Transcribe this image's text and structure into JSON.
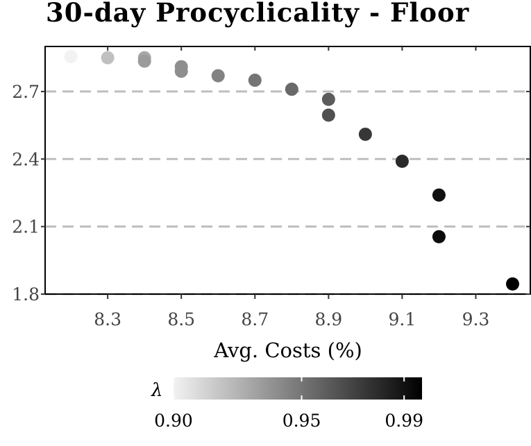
{
  "chart_data": {
    "type": "scatter",
    "title": "30-day Procyclicality - Floor",
    "xlabel": "Avg. Costs (%)",
    "ylabel": "",
    "xlim": [
      8.13,
      9.45
    ],
    "ylim": [
      1.8,
      2.9
    ],
    "x_ticks": [
      "8.3",
      "8.5",
      "8.7",
      "8.9",
      "9.1",
      "9.3"
    ],
    "y_ticks": [
      "1.8",
      "2.1",
      "2.4",
      "2.7"
    ],
    "grid": "horizontal dashed",
    "points": [
      {
        "x": 8.2,
        "y": 2.855,
        "lambda": 0.9
      },
      {
        "x": 8.3,
        "y": 2.85,
        "lambda": 0.92
      },
      {
        "x": 8.4,
        "y": 2.85,
        "lambda": 0.93
      },
      {
        "x": 8.4,
        "y": 2.835,
        "lambda": 0.935
      },
      {
        "x": 8.5,
        "y": 2.81,
        "lambda": 0.94
      },
      {
        "x": 8.5,
        "y": 2.79,
        "lambda": 0.94
      },
      {
        "x": 8.6,
        "y": 2.77,
        "lambda": 0.945
      },
      {
        "x": 8.7,
        "y": 2.75,
        "lambda": 0.95
      },
      {
        "x": 8.8,
        "y": 2.71,
        "lambda": 0.955
      },
      {
        "x": 8.9,
        "y": 2.665,
        "lambda": 0.96
      },
      {
        "x": 8.9,
        "y": 2.595,
        "lambda": 0.965
      },
      {
        "x": 9.0,
        "y": 2.51,
        "lambda": 0.975
      },
      {
        "x": 9.1,
        "y": 2.39,
        "lambda": 0.98
      },
      {
        "x": 9.2,
        "y": 2.24,
        "lambda": 0.99
      },
      {
        "x": 9.2,
        "y": 2.055,
        "lambda": 0.992
      },
      {
        "x": 9.4,
        "y": 1.845,
        "lambda": 0.997
      }
    ],
    "legend": {
      "title": "λ",
      "placement": "bottom",
      "ticks": [
        {
          "label": "0.90",
          "value": 0.9
        },
        {
          "label": "0.95",
          "value": 0.95
        },
        {
          "label": "0.99",
          "value": 0.99
        }
      ],
      "range": [
        0.9,
        0.997
      ],
      "color_low": "#f2f2f2",
      "color_high": "#000000"
    }
  }
}
